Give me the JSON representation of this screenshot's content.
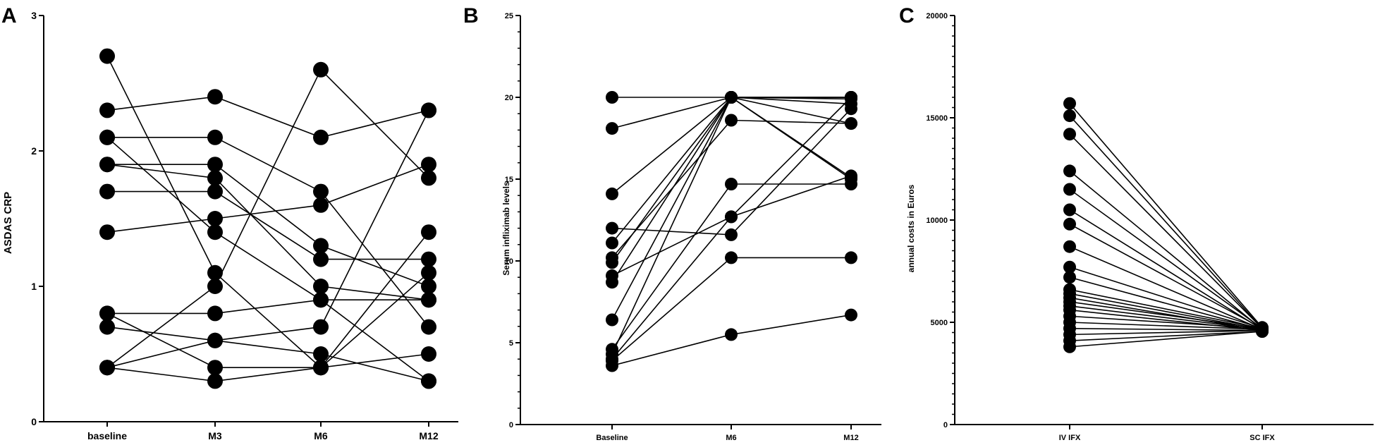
{
  "chart_data": [
    {
      "panel": "A",
      "type": "line",
      "ylabel": "ASDAS CRP",
      "xlabel": "",
      "categories": [
        "baseline",
        "M3",
        "M6",
        "M12"
      ],
      "ylim": [
        0,
        3
      ],
      "yticks": [
        0,
        1,
        2,
        3
      ],
      "series": [
        {
          "values": [
            2.7,
            1.1,
            0.4,
            0.5
          ]
        },
        {
          "values": [
            2.3,
            2.4,
            2.1,
            2.3
          ]
        },
        {
          "values": [
            2.1,
            2.1,
            1.7,
            0.7
          ]
        },
        {
          "values": [
            2.1,
            1.4,
            0.9,
            0.3
          ]
        },
        {
          "values": [
            1.9,
            1.9,
            1.3,
            1.0
          ]
        },
        {
          "values": [
            1.9,
            1.8,
            1.0,
            0.9
          ]
        },
        {
          "values": [
            1.7,
            1.7,
            1.2,
            1.2
          ]
        },
        {
          "values": [
            1.4,
            1.5,
            1.6,
            1.9
          ]
        },
        {
          "values": [
            0.8,
            0.8,
            0.9,
            0.9
          ]
        },
        {
          "values": [
            0.8,
            0.4,
            0.4,
            1.1
          ]
        },
        {
          "values": [
            0.7,
            0.6,
            0.5,
            0.3
          ]
        },
        {
          "values": [
            0.4,
            0.3,
            0.4,
            1.4
          ]
        },
        {
          "values": [
            0.4,
            1.0,
            2.6,
            1.8
          ]
        },
        {
          "values": [
            0.4,
            0.6,
            0.7,
            2.3
          ]
        }
      ]
    },
    {
      "panel": "B",
      "type": "line",
      "ylabel": "Serum infliximab levels",
      "xlabel": "",
      "categories": [
        "Baseline",
        "M6",
        "M12"
      ],
      "ylim": [
        0,
        25
      ],
      "yticks": [
        0,
        5,
        10,
        15,
        20,
        25
      ],
      "series": [
        {
          "values": [
            20.0,
            20.0,
            20.0
          ]
        },
        {
          "values": [
            18.1,
            20.0,
            19.9
          ]
        },
        {
          "values": [
            14.1,
            20.0,
            15.0
          ]
        },
        {
          "values": [
            12.0,
            11.6,
            19.3
          ]
        },
        {
          "values": [
            11.1,
            20.0,
            18.4
          ]
        },
        {
          "values": [
            10.2,
            18.6,
            18.4
          ]
        },
        {
          "values": [
            9.9,
            20.0,
            19.6
          ]
        },
        {
          "values": [
            9.1,
            12.7,
            15.2
          ]
        },
        {
          "values": [
            8.7,
            20.0,
            15.1
          ]
        },
        {
          "values": [
            6.4,
            20.0,
            20.0
          ]
        },
        {
          "values": [
            4.6,
            14.7,
            14.7
          ]
        },
        {
          "values": [
            4.3,
            20.0,
            20.0
          ]
        },
        {
          "values": [
            4.0,
            12.7,
            20.0
          ]
        },
        {
          "values": [
            3.6,
            5.5,
            6.7
          ]
        },
        {
          "values": [
            3.9,
            10.2,
            10.2
          ]
        }
      ]
    },
    {
      "panel": "C",
      "type": "line",
      "ylabel": "annual costs in Euros",
      "xlabel": "",
      "categories": [
        "IV IFX",
        "SC IFX"
      ],
      "ylim": [
        0,
        20000
      ],
      "yticks": [
        0,
        5000,
        10000,
        15000,
        20000
      ],
      "series": [
        {
          "values": [
            15700,
            4750
          ]
        },
        {
          "values": [
            15100,
            4700
          ]
        },
        {
          "values": [
            14200,
            4700
          ]
        },
        {
          "values": [
            12400,
            4650
          ]
        },
        {
          "values": [
            11500,
            4700
          ]
        },
        {
          "values": [
            10500,
            4650
          ]
        },
        {
          "values": [
            9800,
            4700
          ]
        },
        {
          "values": [
            8700,
            4650
          ]
        },
        {
          "values": [
            7700,
            4700
          ]
        },
        {
          "values": [
            7200,
            4650
          ]
        },
        {
          "values": [
            6600,
            4700
          ]
        },
        {
          "values": [
            6400,
            4650
          ]
        },
        {
          "values": [
            6200,
            4600
          ]
        },
        {
          "values": [
            6000,
            4700
          ]
        },
        {
          "values": [
            5800,
            4650
          ]
        },
        {
          "values": [
            5600,
            4600
          ]
        },
        {
          "values": [
            5300,
            4700
          ]
        },
        {
          "values": [
            5000,
            4650
          ]
        },
        {
          "values": [
            4700,
            4600
          ]
        },
        {
          "values": [
            4400,
            4600
          ]
        },
        {
          "values": [
            4100,
            4550
          ]
        },
        {
          "values": [
            3800,
            4550
          ]
        }
      ]
    }
  ]
}
